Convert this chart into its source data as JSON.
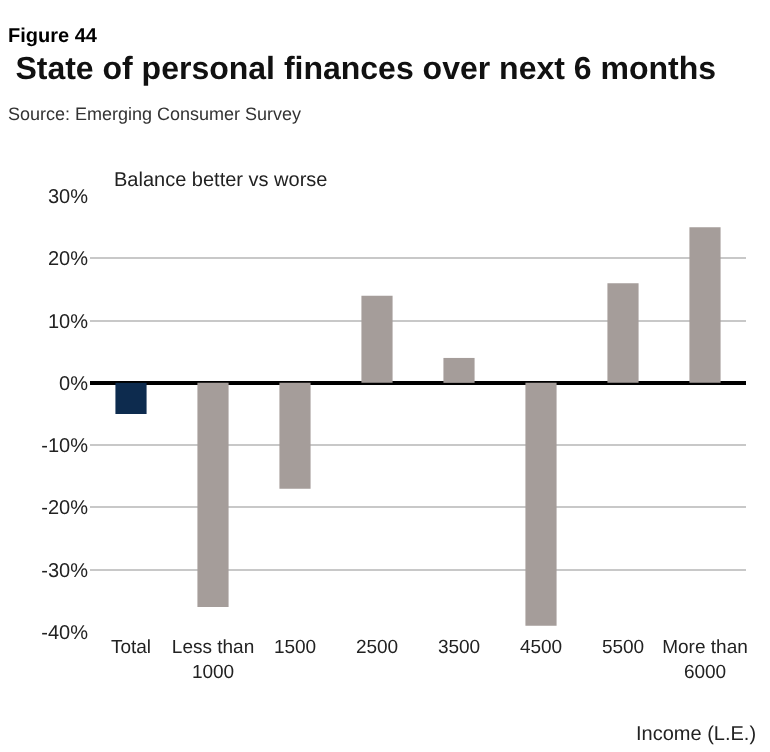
{
  "chart_data": {
    "type": "bar",
    "title": "State of personal finances over next 6 months",
    "ylabel": "Balance better vs worse",
    "xlabel": "Income (L.E.)",
    "annotations": [
      "Figure 44",
      "Source: Emerging Consumer Survey"
    ],
    "categories": [
      "Total",
      "Less than 1000",
      "1500",
      "2500",
      "3500",
      "4500",
      "5500",
      "More than 6000"
    ],
    "values": [
      -5,
      -36,
      -17,
      14,
      4,
      -39,
      16,
      25
    ],
    "colors": [
      "#0d2b4e",
      "#a59d9a",
      "#a59d9a",
      "#a59d9a",
      "#a59d9a",
      "#a59d9a",
      "#a59d9a",
      "#a59d9a"
    ],
    "ylim": [
      -40,
      30
    ],
    "yticks": [
      {
        "value": 30,
        "label": "30%"
      },
      {
        "value": 20,
        "label": "20%"
      },
      {
        "value": 10,
        "label": "10%"
      },
      {
        "value": 0,
        "label": "0%"
      },
      {
        "value": -10,
        "label": "-10%"
      },
      {
        "value": -20,
        "label": "-20%"
      },
      {
        "value": -30,
        "label": "-30%"
      },
      {
        "value": -40,
        "label": "-40%"
      }
    ],
    "grid": "y"
  }
}
